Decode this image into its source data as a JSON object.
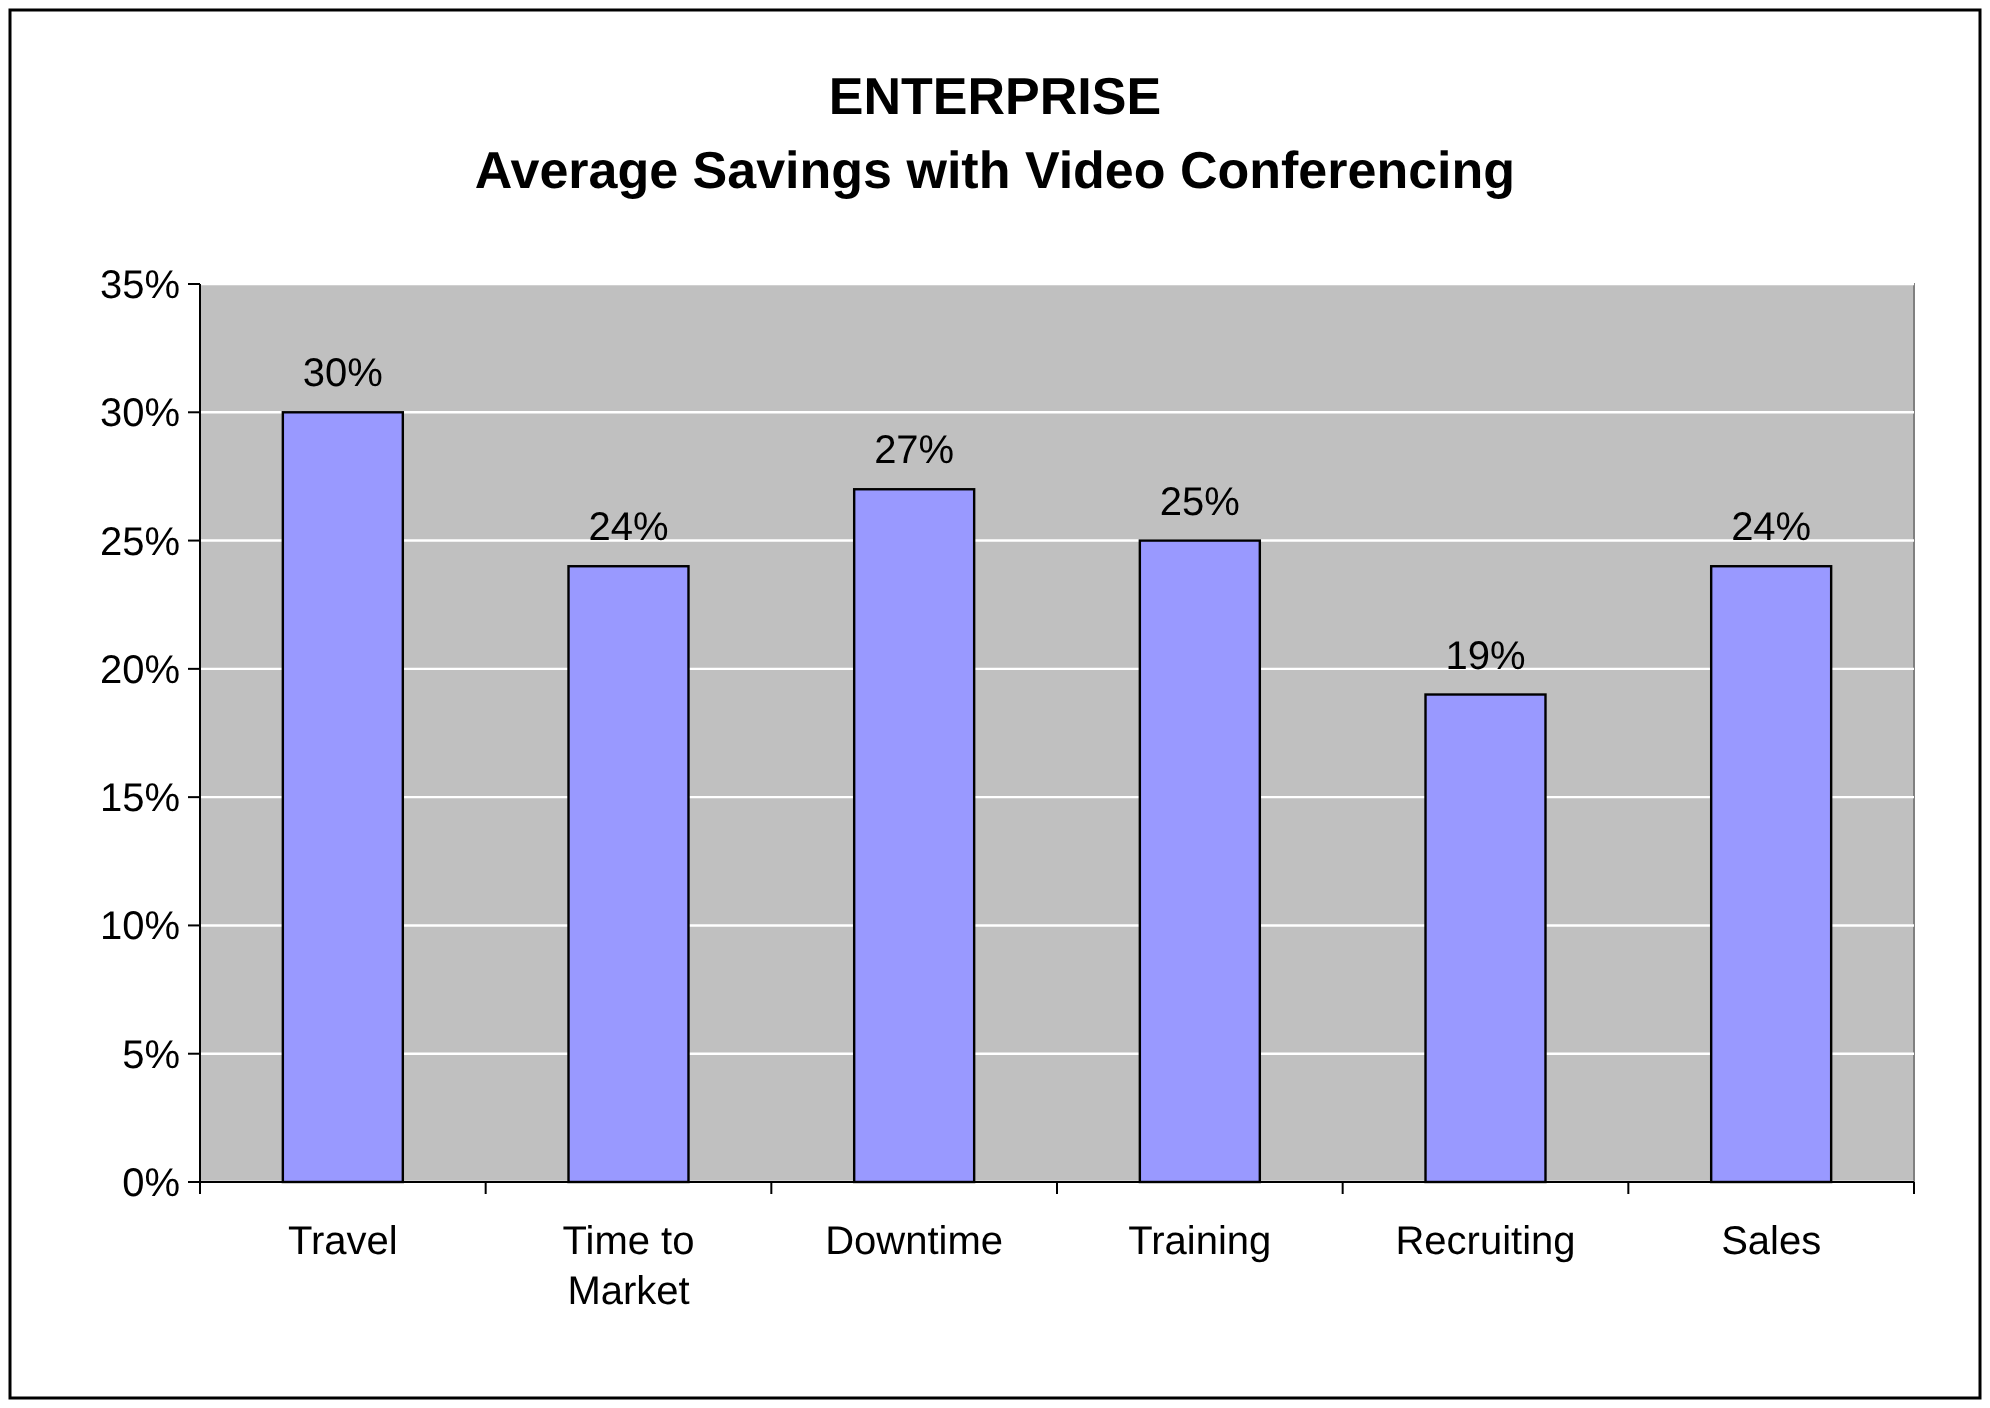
{
  "chart_data": {
    "type": "bar",
    "title": "ENTERPRISE\nAverage Savings with Video Conferencing",
    "categories": [
      "Travel",
      "Time to Market",
      "Downtime",
      "Training",
      "Recruiting",
      "Sales"
    ],
    "values": [
      30,
      24,
      27,
      25,
      19,
      24
    ],
    "value_labels": [
      "30%",
      "24%",
      "27%",
      "25%",
      "19%",
      "24%"
    ],
    "color": "#9999ff",
    "ylim": [
      0,
      35
    ],
    "yticks": [
      {
        "value": 0,
        "label": "0%"
      },
      {
        "value": 5,
        "label": "5%"
      },
      {
        "value": 10,
        "label": "10%"
      },
      {
        "value": 15,
        "label": "15%"
      },
      {
        "value": 20,
        "label": "20%"
      },
      {
        "value": 25,
        "label": "25%"
      },
      {
        "value": 30,
        "label": "30%"
      },
      {
        "value": 35,
        "label": "35%"
      }
    ],
    "grid": "y"
  }
}
